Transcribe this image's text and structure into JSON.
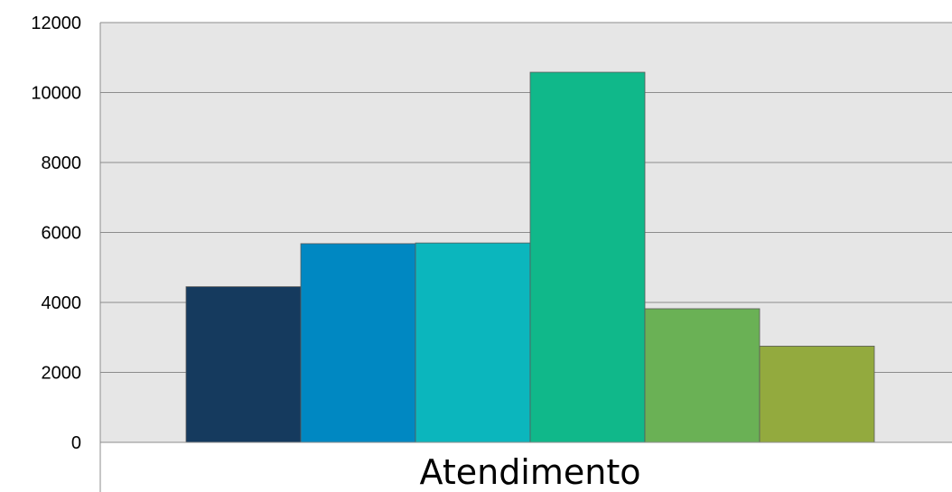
{
  "chart_data": {
    "type": "bar",
    "categories": [
      "Atendimento"
    ],
    "series": [
      {
        "values": [
          4450
        ],
        "color": "#153a5e"
      },
      {
        "values": [
          5680
        ],
        "color": "#0088c2"
      },
      {
        "values": [
          5700
        ],
        "color": "#0bb6bd"
      },
      {
        "values": [
          10580
        ],
        "color": "#10b88a"
      },
      {
        "values": [
          3820
        ],
        "color": "#6ab155"
      },
      {
        "values": [
          2750
        ],
        "color": "#93aa3e"
      }
    ],
    "title": "",
    "xlabel": "",
    "ylabel": "",
    "ylim": [
      0,
      12000
    ],
    "yticks": [
      "0",
      "2000",
      "4000",
      "6000",
      "8000",
      "10000",
      "12000"
    ],
    "grid": true,
    "plot_background": "#e6e6e6",
    "gridline_color": "#8c8c8c",
    "legend": "none"
  }
}
